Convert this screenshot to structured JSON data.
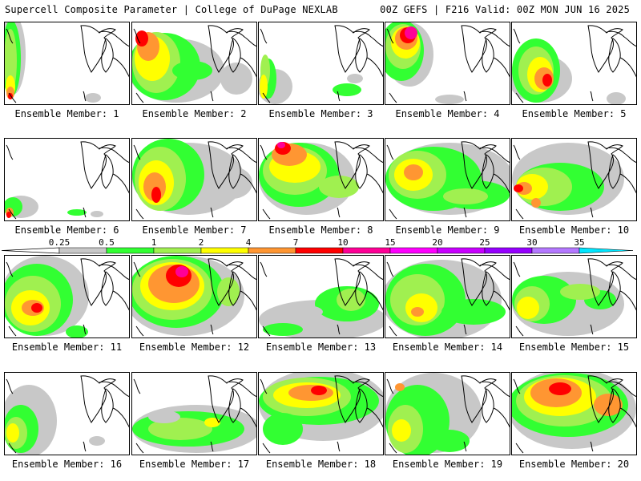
{
  "header": {
    "left": "Supercell Composite Parameter | College of DuPage NEXLAB",
    "right": "00Z GEFS | F216 Valid: 00Z MON JUN 16 2025"
  },
  "colorbar": {
    "ticks": [
      "0.25",
      "0.5",
      "1",
      "2",
      "4",
      "7",
      "10",
      "15",
      "20",
      "25",
      "30",
      "35"
    ],
    "colors": [
      "#c8c8c8",
      "#32ff32",
      "#a0f050",
      "#ffff00",
      "#ff9632",
      "#ff0000",
      "#ff0096",
      "#ff00ff",
      "#c800ff",
      "#9600ff",
      "#b478ff",
      "#00e6ff"
    ]
  },
  "colors": {
    "gray": "#c8c8c8",
    "green": "#32ff32",
    "lime": "#a0f050",
    "yellow": "#ffff00",
    "orange": "#ff9632",
    "red": "#ff0000",
    "pink": "#ff0096",
    "magenta": "#ff00ff"
  },
  "panels": [
    {
      "label": "Ensemble Member: 1"
    },
    {
      "label": "Ensemble Member: 2"
    },
    {
      "label": "Ensemble Member: 3"
    },
    {
      "label": "Ensemble Member: 4"
    },
    {
      "label": "Ensemble Member: 5"
    },
    {
      "label": "Ensemble Member: 6"
    },
    {
      "label": "Ensemble Member: 7"
    },
    {
      "label": "Ensemble Member: 8"
    },
    {
      "label": "Ensemble Member: 9"
    },
    {
      "label": "Ensemble Member: 10"
    },
    {
      "label": "Ensemble Member: 11"
    },
    {
      "label": "Ensemble Member: 12"
    },
    {
      "label": "Ensemble Member: 13"
    },
    {
      "label": "Ensemble Member: 14"
    },
    {
      "label": "Ensemble Member: 15"
    },
    {
      "label": "Ensemble Member: 16"
    },
    {
      "label": "Ensemble Member: 17"
    },
    {
      "label": "Ensemble Member: 18"
    },
    {
      "label": "Ensemble Member: 19"
    },
    {
      "label": "Ensemble Member: 20"
    }
  ]
}
